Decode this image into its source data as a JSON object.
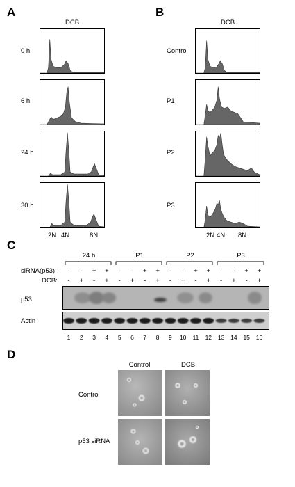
{
  "panelA": {
    "label": "A",
    "title": "DCB",
    "rows": [
      "0 h",
      "6 h",
      "24 h",
      "30 h"
    ],
    "xticks": [
      "2N",
      "4N",
      "8N"
    ]
  },
  "panelB": {
    "label": "B",
    "title": "DCB",
    "rows": [
      "Control",
      "P1",
      "P2",
      "P3"
    ],
    "xticks": [
      "2N",
      "4N",
      "8N"
    ]
  },
  "panelC": {
    "label": "C",
    "groups": [
      "24 h",
      "P1",
      "P2",
      "P3"
    ],
    "row_sirna_label": "siRNA(p53):",
    "row_dcb_label": "DCB:",
    "sirna": [
      "-",
      "-",
      "+",
      "+",
      "-",
      "-",
      "+",
      "+",
      "-",
      "-",
      "+",
      "+",
      "-",
      "-",
      "+",
      "+"
    ],
    "dcb": [
      "-",
      "+",
      "-",
      "+",
      "-",
      "+",
      "-",
      "+",
      "-",
      "+",
      "-",
      "+",
      "-",
      "+",
      "-",
      "+"
    ],
    "blots": [
      "p53",
      "Actin"
    ],
    "lanes": [
      "1",
      "2",
      "3",
      "4",
      "5",
      "6",
      "7",
      "8",
      "9",
      "10",
      "11",
      "12",
      "13",
      "14",
      "15",
      "16"
    ]
  },
  "panelD": {
    "label": "D",
    "columns": [
      "Control",
      "DCB"
    ],
    "rows": [
      "Control",
      "p53 siRNA"
    ]
  }
}
